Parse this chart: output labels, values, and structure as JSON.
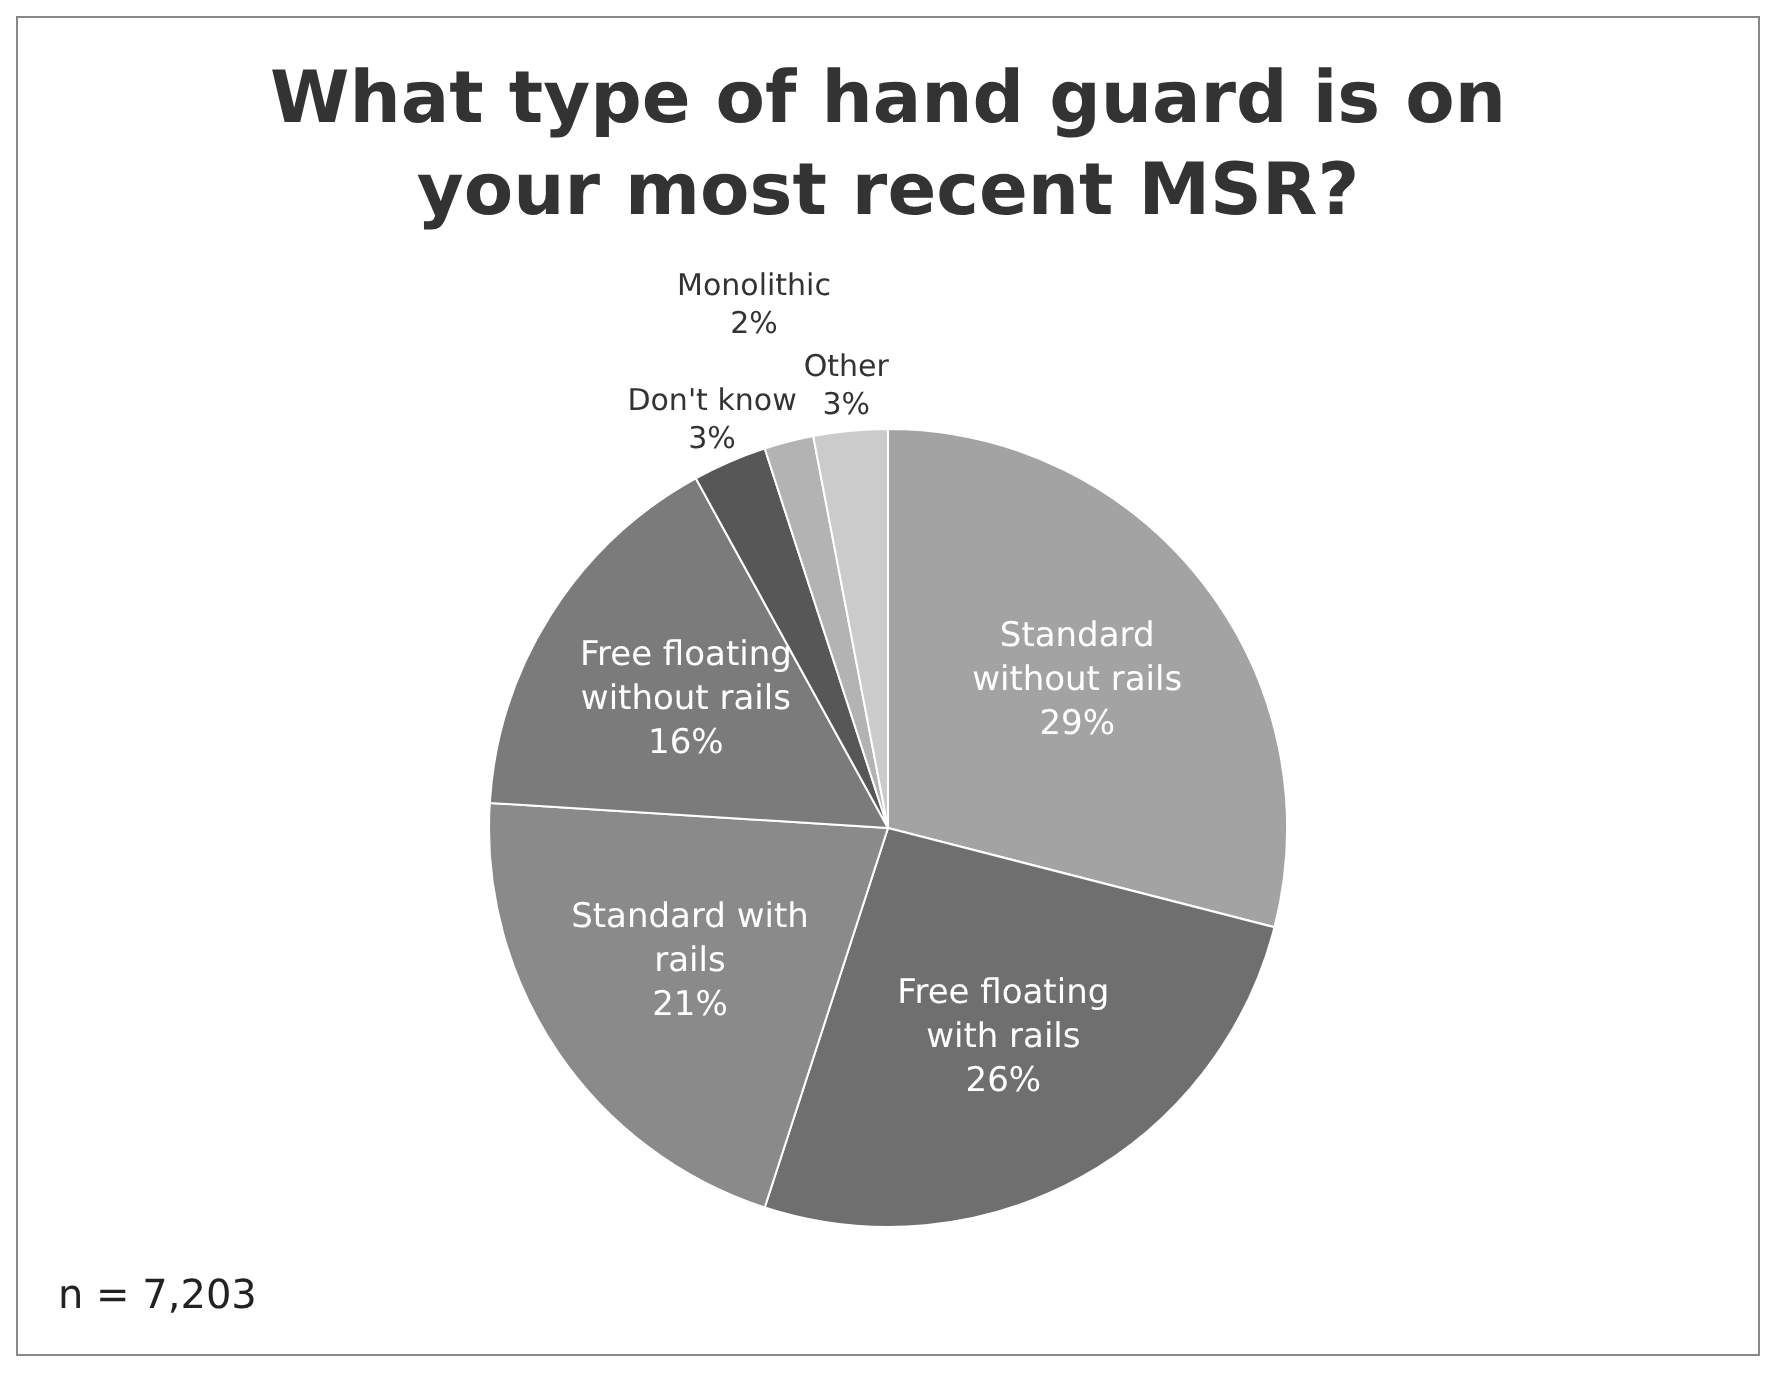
{
  "chart_data": {
    "type": "pie",
    "title": "What type of hand guard is on your most recent MSR?",
    "categories": [
      "Standard without rails",
      "Free floating with rails",
      "Standard with rails",
      "Free floating without rails",
      "Don't know",
      "Monolithic",
      "Other"
    ],
    "values": [
      29,
      26,
      21,
      16,
      3,
      2,
      3
    ],
    "value_labels": [
      "29%",
      "26%",
      "21%",
      "16%",
      "3%",
      "2%",
      "3%"
    ],
    "colors": [
      "#a3a3a3",
      "#6f6f6f",
      "#8a8a8a",
      "#7b7b7b",
      "#575757",
      "#b3b3b3",
      "#cbcbcb"
    ],
    "legend": false,
    "annotations": [
      "n = 7,203"
    ]
  }
}
